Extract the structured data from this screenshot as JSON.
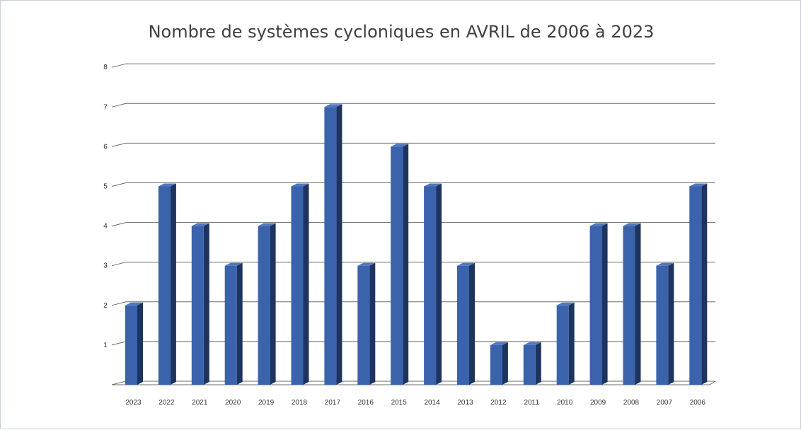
{
  "chart_data": {
    "type": "bar",
    "title": "Nombre de systèmes cycloniques en AVRIL de 2006 à 2023",
    "xlabel": "",
    "ylabel": "",
    "ylim": [
      0,
      8
    ],
    "yticks": [
      "1",
      "2",
      "3",
      "4",
      "5",
      "6",
      "7",
      "8"
    ],
    "grid": true,
    "style": "3d-column",
    "categories": [
      "2023",
      "2022",
      "2021",
      "2020",
      "2019",
      "2018",
      "2017",
      "2016",
      "2015",
      "2014",
      "2013",
      "2012",
      "2011",
      "2010",
      "2009",
      "2008",
      "2007",
      "2006"
    ],
    "values": [
      2,
      5,
      4,
      3,
      4,
      5,
      7,
      3,
      6,
      5,
      3,
      1,
      1,
      2,
      4,
      4,
      3,
      5
    ],
    "colors": {
      "bar_front": "#3a63ac",
      "bar_top": "#4f78bf",
      "bar_side": "#1d3460",
      "grid": "#6b6b6b"
    }
  }
}
